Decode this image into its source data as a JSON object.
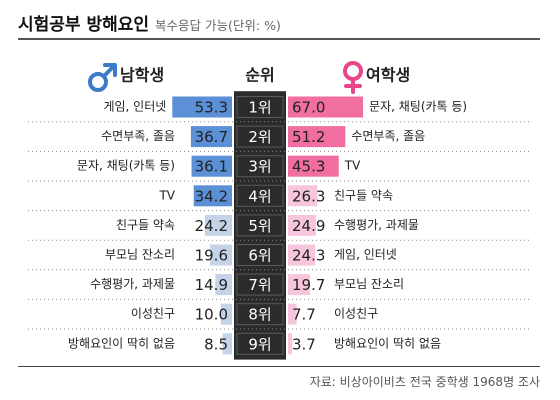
{
  "title": "시험공부 방해요인",
  "subtitle": "복수응답 가능(단위: %)",
  "source": "자료: 비상아이비츠 전국 중학생 1968명 조사",
  "colors": {
    "male_bar": "#5b8fd6",
    "male_bar_light": "#c5d3e8",
    "female_bar": "#f06ea0",
    "female_bar_light": "#f8c6dc",
    "rank_bg": "#2b2b2b",
    "male_symbol": "#3b7bc8",
    "female_symbol": "#e8458b",
    "dot": "#888888"
  },
  "chart_data": {
    "type": "bar",
    "headers": {
      "male": "남학생",
      "rank": "순위",
      "female": "여학생"
    },
    "icons": {
      "male": "male-symbol-icon",
      "female": "female-symbol-icon"
    },
    "ranks": [
      "1위",
      "2위",
      "3위",
      "4위",
      "5위",
      "6위",
      "7위",
      "8위",
      "9위"
    ],
    "series": [
      {
        "name": "남학생",
        "categories": [
          "게임, 인터넷",
          "수면부족, 졸음",
          "문자, 채팅(카톡 등)",
          "TV",
          "친구들 약속",
          "부모님 잔소리",
          "수행평가, 과제물",
          "이성친구",
          "방해요인이 딱히 없음"
        ],
        "values": [
          53.3,
          36.7,
          36.1,
          34.2,
          24.2,
          19.6,
          14.9,
          10.0,
          8.5
        ],
        "labels": [
          "53.3",
          "36.7",
          "36.1",
          "34.2",
          "24.2",
          "19.6",
          "14.9",
          "10.0",
          "8.5"
        ]
      },
      {
        "name": "여학생",
        "categories": [
          "문자, 채팅(카톡 등)",
          "수면부족, 졸음",
          "TV",
          "친구들 약속",
          "수행평가, 과제물",
          "게임, 인터넷",
          "부모님 잔소리",
          "이성친구",
          "방해요인이 딱히 없음"
        ],
        "values": [
          67.0,
          51.2,
          45.3,
          26.3,
          24.9,
          24.3,
          19.7,
          7.7,
          3.7
        ],
        "labels": [
          "67.0",
          "51.2",
          "45.3",
          "26.3",
          "24.9",
          "24.3",
          "19.7",
          "7.7",
          "3.7"
        ]
      }
    ]
  }
}
